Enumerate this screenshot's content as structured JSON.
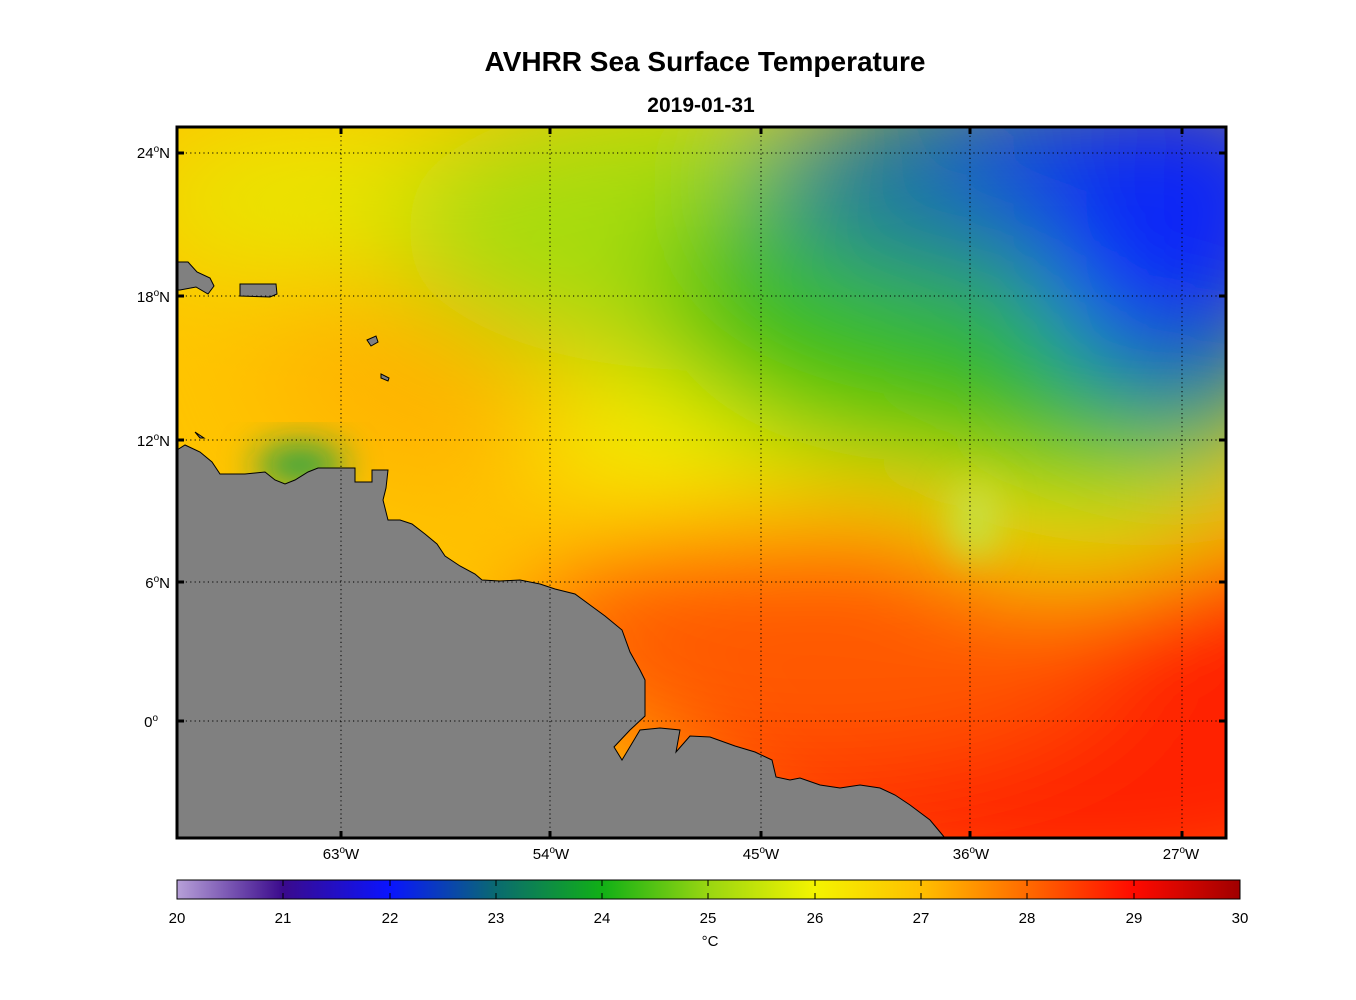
{
  "title": "AVHRR Sea Surface Temperature",
  "subtitle": "2019-01-31",
  "colorbar": {
    "ticks": [
      "20",
      "21",
      "22",
      "23",
      "24",
      "25",
      "26",
      "27",
      "28",
      "29",
      "30"
    ],
    "unit": "°C"
  },
  "axes": {
    "lat_ticks": [
      {
        "num": "24",
        "hemi": "N"
      },
      {
        "num": "18",
        "hemi": "N"
      },
      {
        "num": "12",
        "hemi": "N"
      },
      {
        "num": "6",
        "hemi": "N"
      },
      {
        "num": "0",
        "hemi": ""
      }
    ],
    "lon_ticks": [
      {
        "num": "63",
        "hemi": "W"
      },
      {
        "num": "54",
        "hemi": "W"
      },
      {
        "num": "45",
        "hemi": "W"
      },
      {
        "num": "36",
        "hemi": "W"
      },
      {
        "num": "27",
        "hemi": "W"
      }
    ],
    "lat_range": [
      -4.8,
      25
    ],
    "lon_range": [
      -70,
      -25.2
    ],
    "grid": "dotted"
  },
  "colors": {
    "land": "#808080",
    "colormap": [
      "#b7a0d8",
      "#3a0a8c",
      "#0a14ff",
      "#00b050",
      "#22c00a",
      "#f2f500",
      "#ffb600",
      "#ff2a00",
      "#a00000"
    ]
  }
}
